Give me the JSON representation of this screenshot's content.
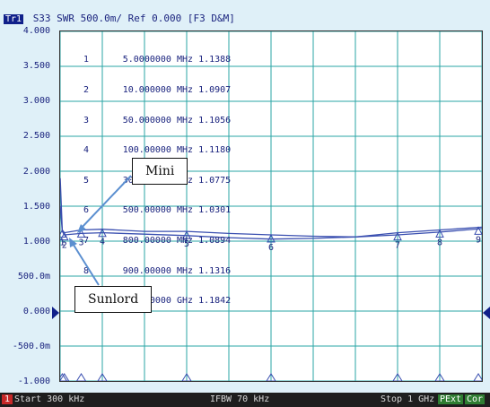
{
  "title_bar": {
    "trace_tag": "Tr1",
    "text": "S33 SWR 500.0m/ Ref 0.000 [F3 D&M]"
  },
  "y_axis_labels": [
    "4.000",
    "3.500",
    "3.000",
    "2.500",
    "2.000",
    "1.500",
    "1.000",
    "500.0m",
    "0.000",
    "-500.0m",
    "-1.000"
  ],
  "markers": [
    {
      "num": "1",
      "freq": "5.0000000 MHz",
      "value": "1.1388"
    },
    {
      "num": "2",
      "freq": "10.000000 MHz",
      "value": "1.0907"
    },
    {
      "num": "3",
      "freq": "50.000000 MHz",
      "value": "1.1056"
    },
    {
      "num": "4",
      "freq": "100.00000 MHz",
      "value": "1.1180"
    },
    {
      "num": "5",
      "freq": "300.00000 MHz",
      "value": "1.0775"
    },
    {
      "num": "6",
      "freq": "500.00000 MHz",
      "value": "1.0301"
    },
    {
      "num": "7",
      "freq": "800.00000 MHz",
      "value": "1.0894"
    },
    {
      "num": "8",
      "freq": "900.00000 MHz",
      "value": "1.1316"
    },
    {
      "num": ">9",
      "freq": "1.0000000 GHz",
      "value": "1.1842"
    }
  ],
  "callouts": {
    "mini": "Mini",
    "sunlord": "Sunlord"
  },
  "bottom_bar": {
    "channel": "1",
    "start": "Start 300 kHz",
    "ifbw": "IFBW 70 kHz",
    "stop": "Stop 1 GHz",
    "pext": "PExt",
    "cor": "Cor"
  },
  "chart_data": {
    "type": "line",
    "ylim": [
      -1.0,
      4.0
    ],
    "ytick_labels": [
      "4.000",
      "3.500",
      "3.000",
      "2.500",
      "2.000",
      "1.500",
      "1.000",
      "500.0m",
      "0.000",
      "-500.0m",
      "-1.000"
    ],
    "series": [
      {
        "name": "Mini",
        "x": [
          0.3,
          5,
          10,
          50,
          100,
          200,
          300,
          400,
          500,
          600,
          700,
          800,
          900,
          1000
        ],
        "values": [
          1.9,
          1.16,
          1.12,
          1.16,
          1.17,
          1.14,
          1.14,
          1.11,
          1.09,
          1.07,
          1.06,
          1.12,
          1.16,
          1.2
        ]
      },
      {
        "name": "Sunlord",
        "x": [
          0.3,
          5,
          10,
          50,
          100,
          200,
          300,
          400,
          500,
          600,
          700,
          800,
          900,
          1000
        ],
        "values": [
          1.5,
          1.14,
          1.09,
          1.11,
          1.12,
          1.1,
          1.08,
          1.05,
          1.03,
          1.04,
          1.06,
          1.09,
          1.13,
          1.18
        ]
      }
    ],
    "markers_mhz": [
      5,
      10,
      50,
      100,
      300,
      500,
      800,
      900,
      1000
    ],
    "colors": {
      "trace": "#3a4fb0",
      "grid": "#2aa6a6",
      "axis_text": "#1a237e"
    }
  }
}
